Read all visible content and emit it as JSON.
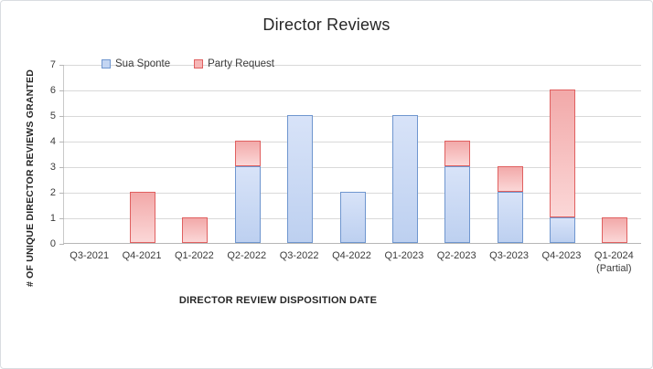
{
  "window": {
    "background": "#ffffff",
    "border_color": "#d9dde1"
  },
  "chart_data": {
    "type": "bar",
    "stacked": true,
    "title": "Director Reviews",
    "xlabel": "DIRECTOR REVIEW DISPOSITION DATE",
    "ylabel": "# OF UNIQUE DIRECTOR REVIEWS GRANTED",
    "ylim": [
      0,
      7
    ],
    "ytick_step": 1,
    "grid": true,
    "legend_position": "top-left-inside",
    "categories": [
      "Q3-2021",
      "Q4-2021",
      "Q1-2022",
      "Q2-2022",
      "Q3-2022",
      "Q4-2022",
      "Q1-2023",
      "Q2-2023",
      "Q3-2023",
      "Q4-2023",
      "Q1-2024 (Partial)"
    ],
    "series": [
      {
        "name": "Sua Sponte",
        "values": [
          0,
          0,
          0,
          3,
          5,
          2,
          5,
          3,
          2,
          1,
          0
        ],
        "fill_top": "#d8e3f8",
        "fill_bottom": "#bdd0f0",
        "border": "#6f96cf",
        "swatch": "#c3d5f2"
      },
      {
        "name": "Party Request",
        "values": [
          0,
          2,
          1,
          1,
          0,
          0,
          0,
          1,
          1,
          5,
          1
        ],
        "fill_top": "#f2a9a9",
        "fill_bottom": "#fbd7d7",
        "border": "#e06060",
        "swatch": "#f6b6b6"
      }
    ]
  }
}
